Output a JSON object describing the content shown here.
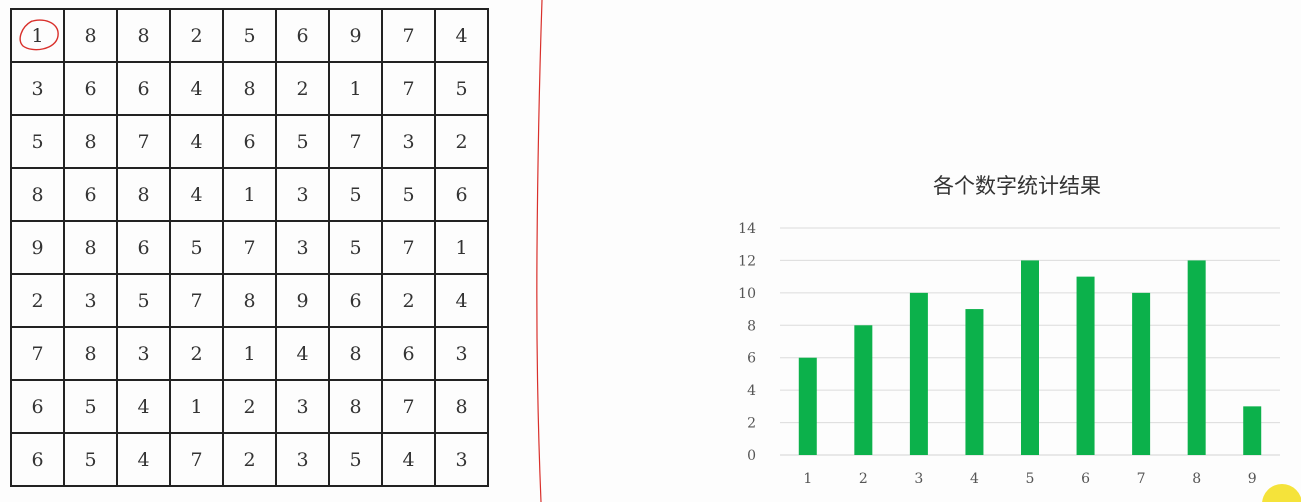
{
  "grid": {
    "rows": [
      [
        1,
        8,
        8,
        2,
        5,
        6,
        9,
        7,
        4
      ],
      [
        3,
        6,
        6,
        4,
        8,
        2,
        1,
        7,
        5
      ],
      [
        5,
        8,
        7,
        4,
        6,
        5,
        7,
        3,
        2
      ],
      [
        8,
        6,
        8,
        4,
        1,
        3,
        5,
        5,
        6
      ],
      [
        9,
        8,
        6,
        5,
        7,
        3,
        5,
        7,
        1
      ],
      [
        2,
        3,
        5,
        7,
        8,
        9,
        6,
        2,
        4
      ],
      [
        7,
        8,
        3,
        2,
        1,
        4,
        8,
        6,
        3
      ],
      [
        6,
        5,
        4,
        1,
        2,
        3,
        8,
        7,
        8
      ],
      [
        6,
        5,
        4,
        7,
        2,
        3,
        5,
        4,
        3
      ]
    ],
    "circled_cell": [
      0,
      0
    ],
    "circle_color": "#d9302b"
  },
  "divider_color": "#d9302b",
  "chart_data": {
    "type": "bar",
    "title": "各个数字统计结果",
    "categories": [
      "1",
      "2",
      "3",
      "4",
      "5",
      "6",
      "7",
      "8",
      "9"
    ],
    "values": [
      6,
      8,
      10,
      9,
      12,
      11,
      10,
      12,
      3
    ],
    "ylim": [
      0,
      14
    ],
    "yticks": [
      0,
      2,
      4,
      6,
      8,
      10,
      12,
      14
    ],
    "grid": true,
    "legend": "none",
    "bar_color": "#0cb14b",
    "grid_color": "#dcdcdc"
  },
  "cursor_highlight_color": "#f5e33a"
}
